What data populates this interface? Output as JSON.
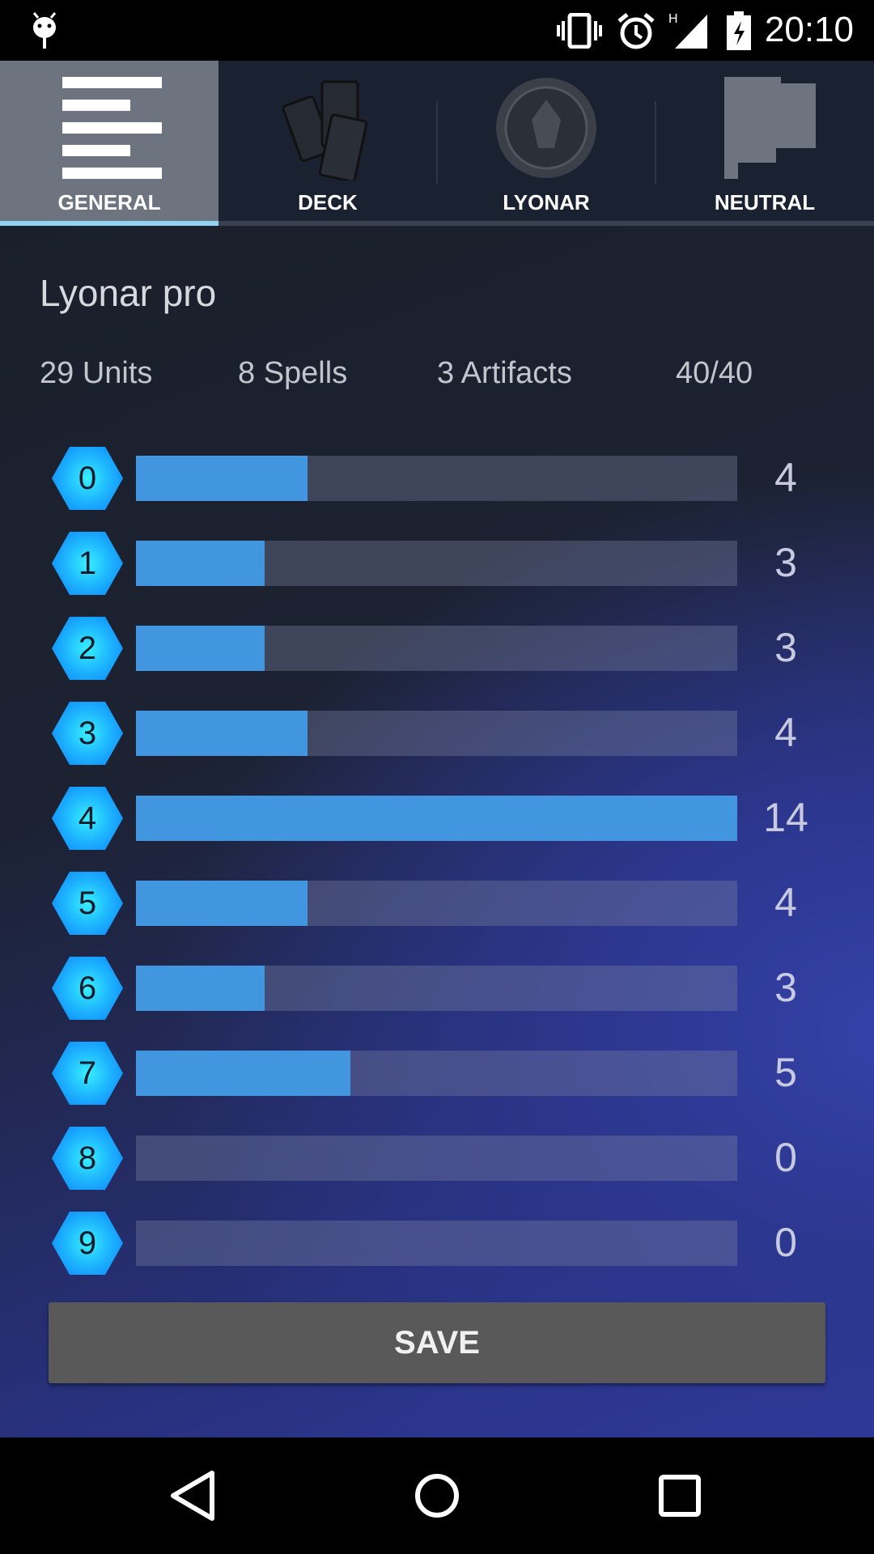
{
  "status_bar": {
    "time": "20:10",
    "icons": [
      "android-debug-icon",
      "vibrate-icon",
      "alarm-icon",
      "signal-h-icon",
      "battery-charging-icon"
    ]
  },
  "tabs": [
    {
      "label": "GENERAL",
      "icon": "list-icon",
      "active": true
    },
    {
      "label": "DECK",
      "icon": "cards-icon",
      "active": false
    },
    {
      "label": "LYONAR",
      "icon": "lyonar-crest-icon",
      "active": false
    },
    {
      "label": "NEUTRAL",
      "icon": "flag-icon",
      "active": false
    }
  ],
  "main": {
    "deck_name": "Lyonar pro",
    "stats": {
      "units": "29 Units",
      "spells": "8 Spells",
      "artifacts": "3 Artifacts",
      "total": "40/40"
    },
    "colors": {
      "bar_fill": "#4296e0",
      "accent": "#8fd3f0"
    },
    "curve": [
      {
        "cost": "0",
        "count": 4
      },
      {
        "cost": "1",
        "count": 3
      },
      {
        "cost": "2",
        "count": 3
      },
      {
        "cost": "3",
        "count": 4
      },
      {
        "cost": "4",
        "count": 14
      },
      {
        "cost": "5",
        "count": 4
      },
      {
        "cost": "6",
        "count": 3
      },
      {
        "cost": "7",
        "count": 5
      },
      {
        "cost": "8",
        "count": 0
      },
      {
        "cost": "9",
        "count": 0
      }
    ],
    "save_label": "SAVE"
  },
  "nav_bar": {
    "icons": [
      "back-icon",
      "home-icon",
      "recents-icon"
    ]
  }
}
